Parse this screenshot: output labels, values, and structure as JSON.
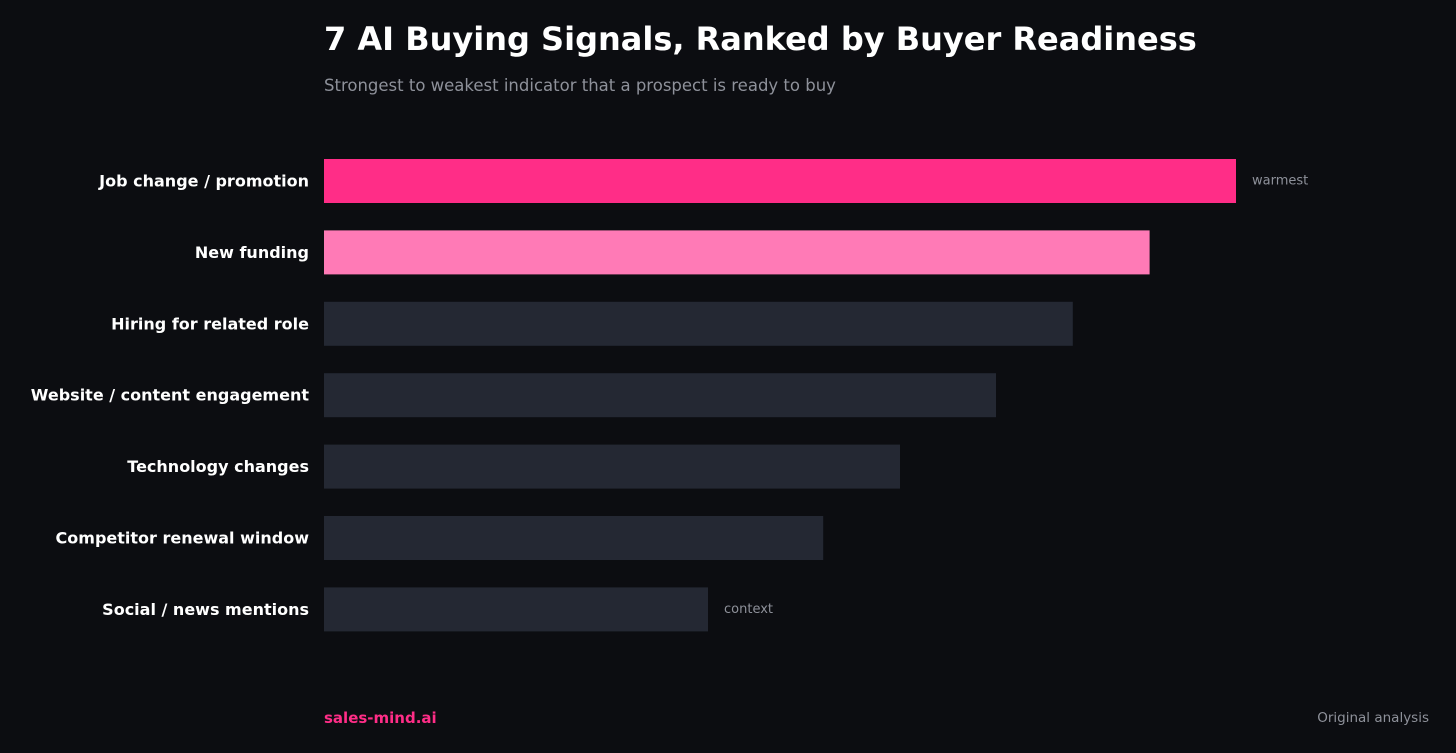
{
  "chart_data": {
    "type": "bar",
    "orientation": "horizontal",
    "title": "7 AI Buying Signals, Ranked by Buyer Readiness",
    "subtitle": "Strongest to weakest indicator that a prospect is ready to buy",
    "categories": [
      "Job change / promotion",
      "New funding",
      "Hiring for related role",
      "Website / content engagement",
      "Technology changes",
      "Competitor renewal window",
      "Social / news mentions"
    ],
    "values": [
      95,
      86,
      78,
      70,
      60,
      52,
      40
    ],
    "xlim": [
      0,
      100
    ],
    "bar_colors": [
      "#ff2d87",
      "#ff7ab6",
      "#242833",
      "#242833",
      "#242833",
      "#242833",
      "#242833"
    ],
    "annotations": [
      {
        "index": 0,
        "text": "warmest"
      },
      {
        "index": 6,
        "text": "context"
      }
    ],
    "grid": false,
    "legend": "none",
    "xlabel": "",
    "ylabel": ""
  },
  "footer": {
    "brand": "sales-mind.ai",
    "brand_color": "#ff2d87",
    "source": "Original analysis"
  },
  "colors": {
    "background": "#0c0d11",
    "text": "#ffffff",
    "muted_text": "#8e919a"
  }
}
